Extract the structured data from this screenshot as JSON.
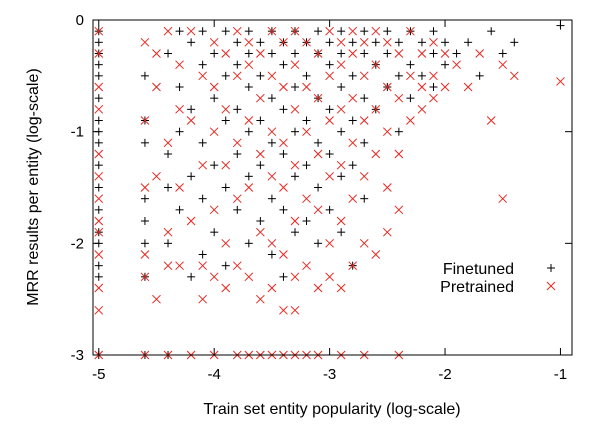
{
  "chart_data": {
    "type": "scatter",
    "xlabel": "Train set entity popularity (log-scale)",
    "ylabel": "MRR results per entity (log-scale)",
    "xlim": [
      -5.05,
      -0.9
    ],
    "ylim": [
      -3,
      0
    ],
    "xticks": [
      -5,
      -4,
      -3,
      -2,
      -1
    ],
    "yticks": [
      -3,
      -2,
      -1,
      0
    ],
    "grid": false,
    "legend_position": "right-middle",
    "series": [
      {
        "name": "Finetuned",
        "marker": "plus",
        "color": "#000000",
        "points": [
          [
            -5,
            -0.1
          ],
          [
            -5,
            -0.2
          ],
          [
            -5,
            -0.3
          ],
          [
            -5,
            -0.4
          ],
          [
            -5,
            -0.5
          ],
          [
            -5,
            -0.7
          ],
          [
            -5,
            -0.9
          ],
          [
            -5,
            -1.0
          ],
          [
            -5,
            -1.1
          ],
          [
            -5,
            -1.3
          ],
          [
            -5,
            -1.5
          ],
          [
            -5,
            -1.7
          ],
          [
            -5,
            -1.9
          ],
          [
            -5,
            -2.0
          ],
          [
            -5,
            -2.2
          ],
          [
            -5,
            -2.3
          ],
          [
            -5,
            -3.0
          ],
          [
            -4.6,
            -0.5
          ],
          [
            -4.6,
            -0.9
          ],
          [
            -4.6,
            -1.1
          ],
          [
            -4.6,
            -1.6
          ],
          [
            -4.6,
            -1.8
          ],
          [
            -4.6,
            -2.0
          ],
          [
            -4.6,
            -2.3
          ],
          [
            -4.6,
            -3.0
          ],
          [
            -4.4,
            -0.3
          ],
          [
            -4.4,
            -1.2
          ],
          [
            -4.4,
            -1.5
          ],
          [
            -4.4,
            -2.0
          ],
          [
            -4.4,
            -3.0
          ],
          [
            -4.3,
            -0.1
          ],
          [
            -4.3,
            -0.6
          ],
          [
            -4.3,
            -1.0
          ],
          [
            -4.3,
            -1.7
          ],
          [
            -4.2,
            -0.2
          ],
          [
            -4.2,
            -0.8
          ],
          [
            -4.2,
            -1.4
          ],
          [
            -4.2,
            -2.3
          ],
          [
            -4.1,
            -0.1
          ],
          [
            -4.1,
            -0.4
          ],
          [
            -4.1,
            -1.1
          ],
          [
            -4.1,
            -1.6
          ],
          [
            -4.1,
            -2.1
          ],
          [
            -4.0,
            -0.3
          ],
          [
            -4.0,
            -0.7
          ],
          [
            -4.0,
            -1.3
          ],
          [
            -4.0,
            -1.9
          ],
          [
            -3.9,
            -0.1
          ],
          [
            -3.9,
            -0.5
          ],
          [
            -3.9,
            -0.9
          ],
          [
            -3.9,
            -1.5
          ],
          [
            -3.9,
            -2.2
          ],
          [
            -3.8,
            -0.2
          ],
          [
            -3.8,
            -0.4
          ],
          [
            -3.8,
            -0.8
          ],
          [
            -3.8,
            -1.2
          ],
          [
            -3.8,
            -1.7
          ],
          [
            -3.7,
            -0.1
          ],
          [
            -3.7,
            -0.3
          ],
          [
            -3.7,
            -0.6
          ],
          [
            -3.7,
            -1.0
          ],
          [
            -3.7,
            -1.4
          ],
          [
            -3.7,
            -2.0
          ],
          [
            -3.6,
            -0.2
          ],
          [
            -3.6,
            -0.5
          ],
          [
            -3.6,
            -0.9
          ],
          [
            -3.6,
            -1.3
          ],
          [
            -3.6,
            -1.8
          ],
          [
            -3.5,
            -0.1
          ],
          [
            -3.5,
            -0.3
          ],
          [
            -3.5,
            -0.7
          ],
          [
            -3.5,
            -1.1
          ],
          [
            -3.5,
            -1.6
          ],
          [
            -3.5,
            -2.1
          ],
          [
            -3.4,
            -0.2
          ],
          [
            -3.4,
            -0.4
          ],
          [
            -3.4,
            -0.8
          ],
          [
            -3.4,
            -1.2
          ],
          [
            -3.4,
            -1.7
          ],
          [
            -3.4,
            -2.3
          ],
          [
            -3.3,
            -0.1
          ],
          [
            -3.3,
            -0.3
          ],
          [
            -3.3,
            -0.6
          ],
          [
            -3.3,
            -1.0
          ],
          [
            -3.3,
            -1.4
          ],
          [
            -3.3,
            -1.9
          ],
          [
            -3.2,
            -0.2
          ],
          [
            -3.2,
            -0.5
          ],
          [
            -3.2,
            -0.9
          ],
          [
            -3.2,
            -1.3
          ],
          [
            -3.2,
            -1.8
          ],
          [
            -3.1,
            -0.1
          ],
          [
            -3.1,
            -0.3
          ],
          [
            -3.1,
            -0.7
          ],
          [
            -3.1,
            -1.1
          ],
          [
            -3.1,
            -1.5
          ],
          [
            -3.1,
            -2.0
          ],
          [
            -3.0,
            -0.2
          ],
          [
            -3.0,
            -0.4
          ],
          [
            -3.0,
            -0.8
          ],
          [
            -3.0,
            -1.2
          ],
          [
            -3.0,
            -1.7
          ],
          [
            -2.9,
            -0.1
          ],
          [
            -2.9,
            -0.3
          ],
          [
            -2.9,
            -0.6
          ],
          [
            -2.9,
            -1.0
          ],
          [
            -2.9,
            -1.4
          ],
          [
            -2.9,
            -1.9
          ],
          [
            -2.8,
            -0.2
          ],
          [
            -2.8,
            -0.5
          ],
          [
            -2.8,
            -0.9
          ],
          [
            -2.8,
            -1.3
          ],
          [
            -2.8,
            -2.2
          ],
          [
            -2.7,
            -0.1
          ],
          [
            -2.7,
            -0.3
          ],
          [
            -2.7,
            -0.7
          ],
          [
            -2.7,
            -1.1
          ],
          [
            -2.7,
            -1.6
          ],
          [
            -2.6,
            -0.2
          ],
          [
            -2.6,
            -0.4
          ],
          [
            -2.6,
            -0.8
          ],
          [
            -2.5,
            -0.1
          ],
          [
            -2.5,
            -0.3
          ],
          [
            -2.5,
            -0.6
          ],
          [
            -2.4,
            -0.2
          ],
          [
            -2.4,
            -0.5
          ],
          [
            -2.4,
            -1.0
          ],
          [
            -2.3,
            -0.1
          ],
          [
            -2.3,
            -0.4
          ],
          [
            -2.3,
            -0.7
          ],
          [
            -2.2,
            -0.2
          ],
          [
            -2.2,
            -0.5
          ],
          [
            -2.1,
            -0.1
          ],
          [
            -2.1,
            -0.3
          ],
          [
            -2.1,
            -0.6
          ],
          [
            -2.0,
            -0.2
          ],
          [
            -2.0,
            -0.4
          ],
          [
            -1.9,
            -0.3
          ],
          [
            -1.8,
            -0.2
          ],
          [
            -1.7,
            -0.5
          ],
          [
            -1.6,
            -0.1
          ],
          [
            -1.5,
            -0.3
          ],
          [
            -1.4,
            -0.2
          ],
          [
            -1.0,
            -0.05
          ]
        ]
      },
      {
        "name": "Pretrained",
        "marker": "x",
        "color": "#e8261e",
        "points": [
          [
            -5,
            -0.1
          ],
          [
            -5,
            -0.3
          ],
          [
            -5,
            -0.6
          ],
          [
            -5,
            -0.8
          ],
          [
            -5,
            -1.2
          ],
          [
            -5,
            -1.4
          ],
          [
            -5,
            -1.6
          ],
          [
            -5,
            -1.8
          ],
          [
            -5,
            -1.9
          ],
          [
            -5,
            -2.1
          ],
          [
            -5,
            -2.4
          ],
          [
            -5,
            -2.6
          ],
          [
            -5,
            -3.0
          ],
          [
            -4.6,
            -0.2
          ],
          [
            -4.6,
            -0.9
          ],
          [
            -4.6,
            -1.5
          ],
          [
            -4.6,
            -2.1
          ],
          [
            -4.6,
            -2.3
          ],
          [
            -4.6,
            -3.0
          ],
          [
            -4.5,
            -0.3
          ],
          [
            -4.5,
            -0.6
          ],
          [
            -4.5,
            -1.4
          ],
          [
            -4.5,
            -2.5
          ],
          [
            -4.4,
            -0.1
          ],
          [
            -4.4,
            -1.1
          ],
          [
            -4.4,
            -1.9
          ],
          [
            -4.4,
            -2.2
          ],
          [
            -4.4,
            -3.0
          ],
          [
            -4.3,
            -0.4
          ],
          [
            -4.3,
            -0.8
          ],
          [
            -4.3,
            -1.5
          ],
          [
            -4.3,
            -2.2
          ],
          [
            -4.2,
            -0.1
          ],
          [
            -4.2,
            -0.9
          ],
          [
            -4.2,
            -1.8
          ],
          [
            -4.2,
            -3.0
          ],
          [
            -4.1,
            -0.5
          ],
          [
            -4.1,
            -1.3
          ],
          [
            -4.1,
            -2.2
          ],
          [
            -4.1,
            -2.5
          ],
          [
            -4.0,
            -0.2
          ],
          [
            -4.0,
            -0.6
          ],
          [
            -4.0,
            -1.0
          ],
          [
            -4.0,
            -1.7
          ],
          [
            -4.0,
            -2.3
          ],
          [
            -4.0,
            -3.0
          ],
          [
            -3.9,
            -0.3
          ],
          [
            -3.9,
            -0.8
          ],
          [
            -3.9,
            -1.3
          ],
          [
            -3.9,
            -2.0
          ],
          [
            -3.9,
            -2.4
          ],
          [
            -3.8,
            -0.1
          ],
          [
            -3.8,
            -0.5
          ],
          [
            -3.8,
            -1.1
          ],
          [
            -3.8,
            -1.6
          ],
          [
            -3.8,
            -2.2
          ],
          [
            -3.8,
            -3.0
          ],
          [
            -3.7,
            -0.2
          ],
          [
            -3.7,
            -0.4
          ],
          [
            -3.7,
            -0.9
          ],
          [
            -3.7,
            -1.5
          ],
          [
            -3.7,
            -2.3
          ],
          [
            -3.7,
            -3.0
          ],
          [
            -3.6,
            -0.3
          ],
          [
            -3.6,
            -0.7
          ],
          [
            -3.6,
            -1.2
          ],
          [
            -3.6,
            -1.9
          ],
          [
            -3.6,
            -2.5
          ],
          [
            -3.6,
            -3.0
          ],
          [
            -3.5,
            -0.1
          ],
          [
            -3.5,
            -0.5
          ],
          [
            -3.5,
            -1.0
          ],
          [
            -3.5,
            -1.4
          ],
          [
            -3.5,
            -2.0
          ],
          [
            -3.5,
            -2.4
          ],
          [
            -3.5,
            -3.0
          ],
          [
            -3.4,
            -0.2
          ],
          [
            -3.4,
            -0.6
          ],
          [
            -3.4,
            -1.1
          ],
          [
            -3.4,
            -1.5
          ],
          [
            -3.4,
            -2.1
          ],
          [
            -3.4,
            -2.6
          ],
          [
            -3.4,
            -3.0
          ],
          [
            -3.3,
            -0.1
          ],
          [
            -3.3,
            -0.4
          ],
          [
            -3.3,
            -0.8
          ],
          [
            -3.3,
            -1.3
          ],
          [
            -3.3,
            -1.8
          ],
          [
            -3.3,
            -2.3
          ],
          [
            -3.3,
            -2.6
          ],
          [
            -3.3,
            -3.0
          ],
          [
            -3.2,
            -0.2
          ],
          [
            -3.2,
            -0.6
          ],
          [
            -3.2,
            -1.0
          ],
          [
            -3.2,
            -1.6
          ],
          [
            -3.2,
            -2.2
          ],
          [
            -3.2,
            -3.0
          ],
          [
            -3.1,
            -0.3
          ],
          [
            -3.1,
            -0.7
          ],
          [
            -3.1,
            -1.2
          ],
          [
            -3.1,
            -1.7
          ],
          [
            -3.1,
            -2.4
          ],
          [
            -3.1,
            -3.0
          ],
          [
            -3.0,
            -0.1
          ],
          [
            -3.0,
            -0.5
          ],
          [
            -3.0,
            -0.9
          ],
          [
            -3.0,
            -1.4
          ],
          [
            -3.0,
            -2.0
          ],
          [
            -3.0,
            -2.3
          ],
          [
            -2.9,
            -0.2
          ],
          [
            -2.9,
            -0.4
          ],
          [
            -2.9,
            -0.8
          ],
          [
            -2.9,
            -1.3
          ],
          [
            -2.9,
            -1.8
          ],
          [
            -2.9,
            -2.4
          ],
          [
            -2.9,
            -3.0
          ],
          [
            -2.8,
            -0.1
          ],
          [
            -2.8,
            -0.3
          ],
          [
            -2.8,
            -0.7
          ],
          [
            -2.8,
            -1.1
          ],
          [
            -2.8,
            -1.6
          ],
          [
            -2.8,
            -2.2
          ],
          [
            -2.7,
            -0.2
          ],
          [
            -2.7,
            -0.5
          ],
          [
            -2.7,
            -0.9
          ],
          [
            -2.7,
            -1.4
          ],
          [
            -2.7,
            -2.0
          ],
          [
            -2.7,
            -3.0
          ],
          [
            -2.6,
            -0.1
          ],
          [
            -2.6,
            -0.4
          ],
          [
            -2.6,
            -0.8
          ],
          [
            -2.6,
            -1.2
          ],
          [
            -2.6,
            -2.1
          ],
          [
            -2.5,
            -0.2
          ],
          [
            -2.5,
            -0.6
          ],
          [
            -2.5,
            -1.0
          ],
          [
            -2.5,
            -1.5
          ],
          [
            -2.5,
            -1.9
          ],
          [
            -2.4,
            -0.3
          ],
          [
            -2.4,
            -0.7
          ],
          [
            -2.4,
            -1.2
          ],
          [
            -2.4,
            -1.7
          ],
          [
            -2.4,
            -3.0
          ],
          [
            -2.3,
            -0.1
          ],
          [
            -2.3,
            -0.5
          ],
          [
            -2.3,
            -0.9
          ],
          [
            -2.2,
            -0.3
          ],
          [
            -2.2,
            -0.6
          ],
          [
            -2.2,
            -0.8
          ],
          [
            -2.1,
            -0.2
          ],
          [
            -2.1,
            -0.5
          ],
          [
            -2.1,
            -0.7
          ],
          [
            -2.0,
            -0.3
          ],
          [
            -2.0,
            -0.6
          ],
          [
            -1.9,
            -0.4
          ],
          [
            -1.8,
            -0.6
          ],
          [
            -1.7,
            -0.3
          ],
          [
            -1.6,
            -0.9
          ],
          [
            -1.5,
            -0.4
          ],
          [
            -1.5,
            -1.6
          ],
          [
            -1.4,
            -0.5
          ],
          [
            -1.0,
            -0.55
          ]
        ]
      }
    ]
  }
}
